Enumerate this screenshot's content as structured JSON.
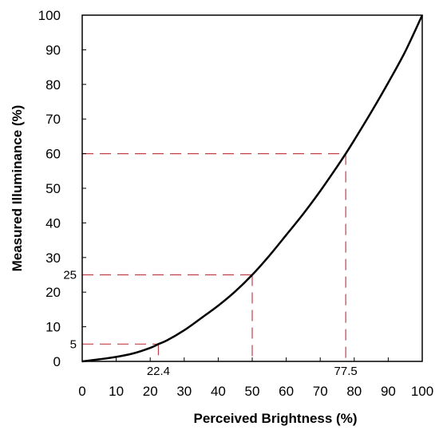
{
  "chart_data": {
    "type": "line",
    "title": "",
    "xlabel": "Perceived Brightness (%)",
    "ylabel": "Measured Illuminance (%)",
    "xlim": [
      0,
      100
    ],
    "ylim": [
      0,
      100
    ],
    "xticks": [
      "0",
      "10",
      "20",
      "30",
      "40",
      "50",
      "60",
      "70",
      "80",
      "90",
      "100"
    ],
    "yticks": [
      "0",
      "10",
      "20",
      "30",
      "40",
      "50",
      "60",
      "70",
      "80",
      "90",
      "100"
    ],
    "grid": false,
    "legend": "none",
    "series": [
      {
        "x": [
          0,
          5,
          10,
          15,
          20,
          22.4,
          25,
          30,
          35,
          40,
          45,
          50,
          55,
          60,
          65,
          70,
          75,
          77.5,
          80,
          85,
          90,
          95,
          100
        ],
        "y": [
          0,
          0.6,
          1.3,
          2.3,
          3.9,
          5,
          6.1,
          9.0,
          12.5,
          16.1,
          20.2,
          25,
          30.5,
          36.5,
          42.6,
          49.2,
          56.3,
          60,
          63.9,
          72.0,
          80.5,
          89.5,
          100
        ],
        "color": "#000000"
      }
    ],
    "annotations": [
      {
        "x": 22.4,
        "y": 5,
        "x_label": "22.4",
        "y_label": "5"
      },
      {
        "x": 50,
        "y": 25,
        "x_label": "",
        "y_label": "25"
      },
      {
        "x": 77.5,
        "y": 60,
        "x_label": "77.5",
        "y_label": ""
      }
    ],
    "annotation_color": "#c0404a"
  }
}
